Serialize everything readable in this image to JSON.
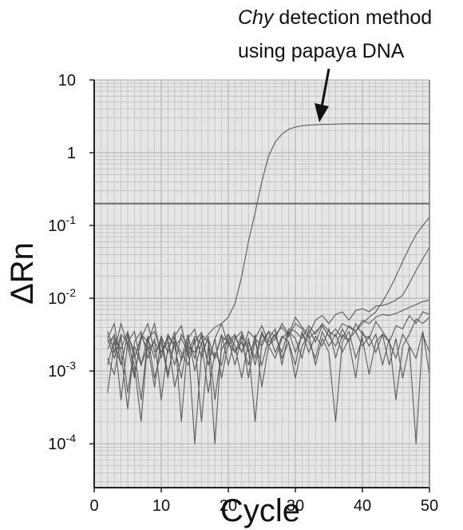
{
  "annotation": {
    "italic": "Chy",
    "line1_rest": " detection method",
    "line2": "using papaya DNA"
  },
  "chart_data": {
    "type": "line",
    "title": "",
    "xlabel": "Cycle",
    "ylabel": "ΔRn",
    "xlim": [
      0,
      50
    ],
    "ylim": [
      2.5e-05,
      10
    ],
    "yscale": "log",
    "grid": true,
    "xticks": [
      0,
      10,
      20,
      30,
      40,
      50
    ],
    "xtick_labels": [
      "0",
      "10",
      "20",
      "30",
      "40",
      "50"
    ],
    "yticks": [
      10,
      1,
      0.1,
      0.01,
      0.001,
      0.0001
    ],
    "ytick_labels": [
      {
        "base": "10",
        "exp": ""
      },
      {
        "base": "1",
        "exp": ""
      },
      {
        "base": "10",
        "exp": "-1"
      },
      {
        "base": "10",
        "exp": "-2"
      },
      {
        "base": "10",
        "exp": "-3"
      },
      {
        "base": "10",
        "exp": "-4"
      }
    ],
    "threshold": 0.2,
    "colors": {
      "plot_bg": "#e6e6e6",
      "grid": "#b4b4b4",
      "lines": "#5a5a5a",
      "threshold": "#6e6e6e"
    },
    "series": [
      {
        "x": [
          2,
          3,
          4,
          5,
          6,
          7,
          8,
          9,
          10,
          11,
          12,
          13,
          14,
          15,
          16,
          17,
          18,
          19,
          20,
          21,
          22,
          23,
          24,
          25,
          26,
          27,
          28,
          29,
          30,
          31,
          32,
          33,
          34,
          35,
          36,
          37,
          38,
          39,
          40,
          41,
          42,
          43,
          44,
          45,
          46,
          47,
          48,
          49,
          50
        ],
        "y": [
          0.0025,
          0.003,
          0.002,
          0.0035,
          0.0015,
          0.003,
          0.002,
          0.0025,
          0.0018,
          0.003,
          0.0022,
          0.0028,
          0.0018,
          0.003,
          0.0024,
          0.0032,
          0.004,
          0.0045,
          0.0055,
          0.0085,
          0.02,
          0.06,
          0.15,
          0.4,
          0.9,
          1.4,
          1.8,
          2.1,
          2.25,
          2.35,
          2.4,
          2.42,
          2.45,
          2.45,
          2.47,
          2.48,
          2.5,
          2.5,
          2.5,
          2.5,
          2.5,
          2.5,
          2.5,
          2.5,
          2.5,
          2.5,
          2.5,
          2.5,
          2.5
        ]
      },
      {
        "x": [
          2,
          3,
          4,
          5,
          6,
          7,
          8,
          9,
          10,
          11,
          12,
          13,
          14,
          15,
          16,
          17,
          18,
          19,
          20,
          21,
          22,
          23,
          24,
          25,
          26,
          27,
          28,
          29,
          30,
          31,
          32,
          33,
          34,
          35,
          36,
          37,
          38,
          39,
          40,
          41,
          42,
          43,
          44,
          45,
          46,
          47,
          48,
          49,
          50
        ],
        "y": [
          0.0028,
          0.0045,
          0.0012,
          0.0032,
          0.0009,
          0.0028,
          0.0045,
          0.0018,
          0.0025,
          0.0008,
          0.003,
          0.0042,
          0.0016,
          0.0025,
          0.0034,
          0.0012,
          0.0028,
          0.0045,
          0.0022,
          0.003,
          0.0018,
          0.0035,
          0.0028,
          0.0042,
          0.0025,
          0.0032,
          0.004,
          0.003,
          0.0045,
          0.0038,
          0.0028,
          0.0035,
          0.0042,
          0.003,
          0.0038,
          0.0028,
          0.0042,
          0.0035,
          0.0045,
          0.0055,
          0.0065,
          0.009,
          0.013,
          0.02,
          0.032,
          0.05,
          0.075,
          0.1,
          0.13
        ]
      },
      {
        "x": [
          2,
          3,
          4,
          5,
          6,
          7,
          8,
          9,
          10,
          11,
          12,
          13,
          14,
          15,
          16,
          17,
          18,
          19,
          20,
          21,
          22,
          23,
          24,
          25,
          26,
          27,
          28,
          29,
          30,
          31,
          32,
          33,
          34,
          35,
          36,
          37,
          38,
          39,
          40,
          41,
          42,
          43,
          44,
          45,
          46,
          47,
          48,
          49,
          50
        ],
        "y": [
          0.0015,
          0.0009,
          0.003,
          0.0005,
          0.0022,
          0.0012,
          0.003,
          0.0008,
          0.0018,
          0.0028,
          0.0006,
          0.0015,
          0.0032,
          0.001,
          0.0025,
          0.0005,
          0.0018,
          0.0012,
          0.0032,
          0.0022,
          0.0008,
          0.0025,
          0.0015,
          0.0035,
          0.0022,
          0.0028,
          0.0045,
          0.0032,
          0.0055,
          0.004,
          0.0032,
          0.005,
          0.0058,
          0.0045,
          0.006,
          0.0065,
          0.005,
          0.0068,
          0.0072,
          0.0065,
          0.0078,
          0.008,
          0.0085,
          0.0095,
          0.011,
          0.016,
          0.024,
          0.035,
          0.05
        ]
      },
      {
        "x": [
          2,
          3,
          4,
          5,
          6,
          7,
          8,
          9,
          10,
          11,
          12,
          13,
          14,
          15,
          16,
          17,
          18,
          19,
          20,
          21,
          22,
          23,
          24,
          25,
          26,
          27,
          28,
          29,
          30,
          31,
          32,
          33,
          34,
          35,
          36,
          37,
          38,
          39,
          40,
          41,
          42,
          43,
          44,
          45,
          46,
          47,
          48,
          49,
          50
        ],
        "y": [
          0.0005,
          0.0025,
          0.0012,
          0.0032,
          0.0018,
          0.0004,
          0.0028,
          0.0015,
          0.003,
          0.0009,
          0.0025,
          0.0018,
          0.0012,
          0.0028,
          0.0002,
          0.0022,
          0.0015,
          0.003,
          0.0025,
          0.0018,
          0.0032,
          0.0008,
          0.0028,
          0.0022,
          0.0035,
          0.003,
          0.0018,
          0.0038,
          0.0035,
          0.0028,
          0.0042,
          0.0032,
          0.0045,
          0.0035,
          0.003,
          0.0045,
          0.004,
          0.0035,
          0.005,
          0.0045,
          0.0055,
          0.006,
          0.0058,
          0.0062,
          0.0068,
          0.0075,
          0.0082,
          0.009,
          0.0095
        ]
      },
      {
        "x": [
          2,
          3,
          4,
          5,
          6,
          7,
          8,
          9,
          10,
          11,
          12,
          13,
          14,
          15,
          16,
          17,
          18,
          19,
          20,
          21,
          22,
          23,
          24,
          25,
          26,
          27,
          28,
          29,
          30,
          31,
          32,
          33,
          34,
          35,
          36,
          37,
          38,
          39,
          40,
          41,
          42,
          43,
          44,
          45,
          46,
          47,
          48,
          49,
          50
        ],
        "y": [
          0.0035,
          0.0018,
          0.0045,
          0.0022,
          0.0008,
          0.0032,
          0.0025,
          0.0045,
          0.0015,
          0.0032,
          0.0022,
          0.0008,
          0.0028,
          0.0038,
          0.0015,
          0.003,
          0.0004,
          0.002,
          0.0028,
          0.0012,
          0.003,
          0.0022,
          0.0002,
          0.0025,
          0.0035,
          0.0018,
          0.003,
          0.0025,
          0.0012,
          0.0035,
          0.0018,
          0.003,
          0.0022,
          0.0038,
          0.0015,
          0.0032,
          0.0025,
          0.0008,
          0.0035,
          0.0022,
          0.0032,
          0.0012,
          0.0028,
          0.0004,
          0.0022,
          0.0032,
          0.0052,
          0.0045,
          0.0055
        ]
      },
      {
        "x": [
          2,
          3,
          4,
          5,
          6,
          7,
          8,
          9,
          10,
          11,
          12,
          13,
          14,
          15,
          16,
          17,
          18,
          19,
          20,
          21,
          22,
          23,
          24,
          25,
          26,
          27,
          28,
          29,
          30,
          31,
          32,
          33,
          34,
          35,
          36,
          37,
          38,
          39,
          40,
          41,
          42,
          43,
          44,
          45,
          46,
          47,
          48,
          49,
          50
        ],
        "y": [
          0.002,
          0.0032,
          0.0004,
          0.0025,
          0.0035,
          0.0012,
          0.0022,
          0.0006,
          0.003,
          0.0018,
          0.0035,
          0.0002,
          0.0028,
          0.0015,
          0.0032,
          0.0025,
          0.0001,
          0.0025,
          0.0032,
          0.0018,
          0.0025,
          0.0012,
          0.0032,
          0.0006,
          0.0022,
          0.0032,
          0.0015,
          0.0025,
          0.0008,
          0.0022,
          0.0032,
          0.0012,
          0.0028,
          0.0018,
          0.0002,
          0.0025,
          0.0035,
          0.0015,
          0.0028,
          0.0009,
          0.0025,
          0.0032,
          0.0012,
          0.0028,
          0.0008,
          0.0022,
          0.0015,
          0.0035,
          0.0009
        ]
      },
      {
        "x": [
          2,
          3,
          4,
          5,
          6,
          7,
          8,
          9,
          10,
          11,
          12,
          13,
          14,
          15,
          16,
          17,
          18,
          19,
          20,
          21,
          22,
          23,
          24,
          25,
          26,
          27,
          28,
          29,
          30,
          31,
          32,
          33,
          34,
          35,
          36,
          37,
          38,
          39,
          40,
          41,
          42,
          43,
          44,
          45,
          46,
          47,
          48,
          49,
          50
        ],
        "y": [
          0.0012,
          0.0028,
          0.0018,
          0.0003,
          0.0025,
          0.0035,
          0.0015,
          0.0028,
          0.0004,
          0.0022,
          0.003,
          0.0014,
          0.0025,
          0.0001,
          0.0018,
          0.0028,
          0.0015,
          0.0032,
          0.0012,
          0.0028,
          0.0035,
          0.0018,
          0.0025,
          0.0012,
          0.0028,
          0.0038,
          0.0012,
          0.0035,
          0.0028,
          0.0015,
          0.0038,
          0.0025,
          0.0042,
          0.003,
          0.0022,
          0.0038,
          0.0025,
          0.0045,
          0.0032,
          0.0028,
          0.0048,
          0.0035,
          0.0025,
          0.0042,
          0.0038,
          0.0058,
          0.0045,
          0.0065,
          0.006
        ]
      },
      {
        "x": [
          2,
          3,
          4,
          5,
          6,
          7,
          8,
          9,
          10,
          11,
          12,
          13,
          14,
          15,
          16,
          17,
          18,
          19,
          20,
          21,
          22,
          23,
          24,
          25,
          26,
          27,
          28,
          29,
          30,
          31,
          32,
          33,
          34,
          35,
          36,
          37,
          38,
          39,
          40,
          41,
          42,
          43,
          44,
          45,
          46,
          47,
          48,
          49,
          50
        ],
        "y": [
          0.0028,
          0.0015,
          0.0032,
          0.0025,
          0.0012,
          0.0002,
          0.0028,
          0.0035,
          0.0018,
          0.0025,
          0.0012,
          0.0032,
          0.0022,
          0.0018,
          0.003,
          0.0012,
          0.0028,
          0.0008,
          0.0025,
          0.0032,
          0.0018,
          0.0028,
          0.0012,
          0.0032,
          0.0022,
          0.0015,
          0.0028,
          0.0035,
          0.0018,
          0.0032,
          0.0025,
          0.0015,
          0.0035,
          0.0022,
          0.0032,
          0.0018,
          0.0028,
          0.0035,
          0.0022,
          0.003,
          0.0018,
          0.0032,
          0.0025,
          0.0015,
          0.0032,
          0.0022,
          0.0001,
          0.0032,
          0.0018
        ]
      }
    ]
  }
}
